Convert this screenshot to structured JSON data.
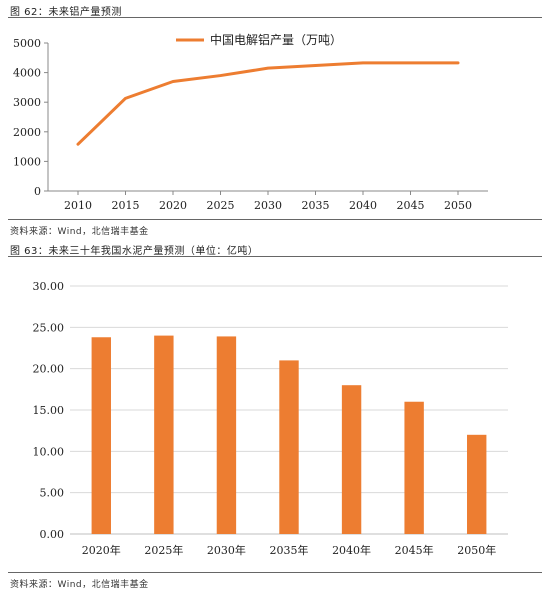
{
  "figures": [
    {
      "caption": "图 62：未来铝产量预测",
      "source": "资料来源：Wind，北信瑞丰基金"
    },
    {
      "caption": "图 63：未来三十年我国水泥产量预测（单位：亿吨）",
      "source": "资料来源：Wind，北信瑞丰基金"
    }
  ],
  "chart_data": [
    {
      "type": "line",
      "x": [
        2010,
        2015,
        2020,
        2025,
        2030,
        2035,
        2040,
        2045,
        2050
      ],
      "xticks": [
        "2010",
        "2015",
        "2020",
        "2025",
        "2030",
        "2035",
        "2040",
        "2045",
        "2050"
      ],
      "series": [
        {
          "name": "中国电解铝产量（万吨）",
          "values": [
            1580,
            3130,
            3700,
            3900,
            4150,
            4240,
            4330,
            4330,
            4330
          ],
          "color": "#ED7D31"
        }
      ],
      "ylim": [
        0,
        5000
      ],
      "yticks": [
        "0",
        "1000",
        "2000",
        "3000",
        "4000",
        "5000"
      ],
      "grid": false,
      "legend": "top-center"
    },
    {
      "type": "bar",
      "categories": [
        "2020年",
        "2025年",
        "2030年",
        "2035年",
        "2040年",
        "2045年",
        "2050年"
      ],
      "values": [
        23.8,
        24.0,
        23.9,
        21.0,
        18.0,
        16.0,
        12.0
      ],
      "color": "#ED7D31",
      "ylim": [
        0,
        30
      ],
      "yticks": [
        "0.00",
        "5.00",
        "10.00",
        "15.00",
        "20.00",
        "25.00",
        "30.00"
      ],
      "grid": true,
      "legend": "none"
    }
  ]
}
